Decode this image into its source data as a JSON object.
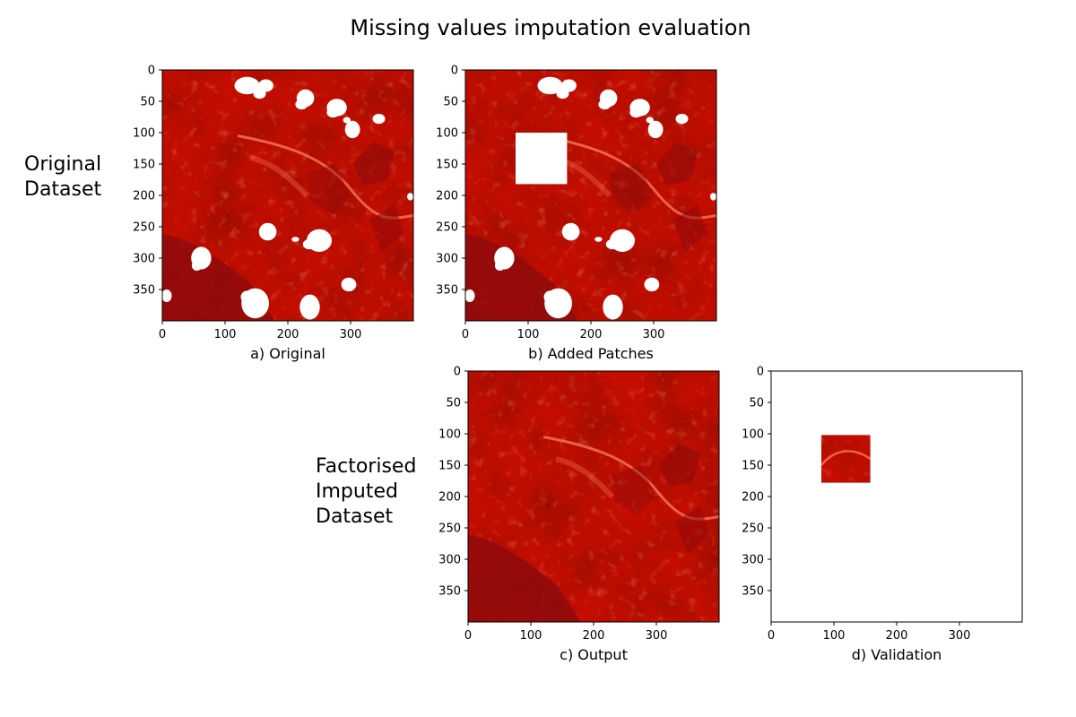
{
  "title": "Missing values imputation evaluation",
  "row_labels": {
    "top": [
      "Original",
      "Dataset"
    ],
    "bottom": [
      "Factorised",
      "Imputed",
      "Dataset"
    ]
  },
  "colors": {
    "base": "#c8150f",
    "dark": "#8f0a0c",
    "light": "#f45a38",
    "missing": "#ffffff",
    "axis": "#000000"
  },
  "chart_data": [
    {
      "type": "heatmap",
      "caption": "a) Original",
      "colormap": "Reds",
      "x_ticks": [
        0,
        100,
        200,
        300
      ],
      "y_ticks": [
        0,
        50,
        100,
        150,
        200,
        250,
        300,
        350
      ],
      "xlim": [
        0,
        400
      ],
      "ylim": [
        400,
        0
      ],
      "missing_patches": "cloud",
      "mask_region": null
    },
    {
      "type": "heatmap",
      "caption": "b) Added Patches",
      "colormap": "Reds",
      "x_ticks": [
        0,
        100,
        200,
        300
      ],
      "y_ticks": [
        0,
        50,
        100,
        150,
        200,
        250,
        300,
        350
      ],
      "xlim": [
        0,
        400
      ],
      "ylim": [
        400,
        0
      ],
      "missing_patches": "cloud",
      "added_patch": {
        "x": [
          80,
          162
        ],
        "y": [
          100,
          182
        ]
      },
      "mask_region": null
    },
    {
      "type": "heatmap",
      "caption": "c) Output",
      "colormap": "Reds",
      "x_ticks": [
        0,
        100,
        200,
        300
      ],
      "y_ticks": [
        0,
        50,
        100,
        150,
        200,
        250,
        300,
        350
      ],
      "xlim": [
        0,
        400
      ],
      "ylim": [
        400,
        0
      ],
      "missing_patches": "none",
      "mask_region": null
    },
    {
      "type": "heatmap",
      "caption": "d) Validation",
      "colormap": "Reds",
      "x_ticks": [
        0,
        100,
        200,
        300
      ],
      "y_ticks": [
        0,
        50,
        100,
        150,
        200,
        250,
        300,
        350
      ],
      "xlim": [
        0,
        400
      ],
      "ylim": [
        400,
        0
      ],
      "missing_patches": "none",
      "mask_region": {
        "x": [
          80,
          158
        ],
        "y": [
          102,
          178
        ]
      }
    }
  ]
}
